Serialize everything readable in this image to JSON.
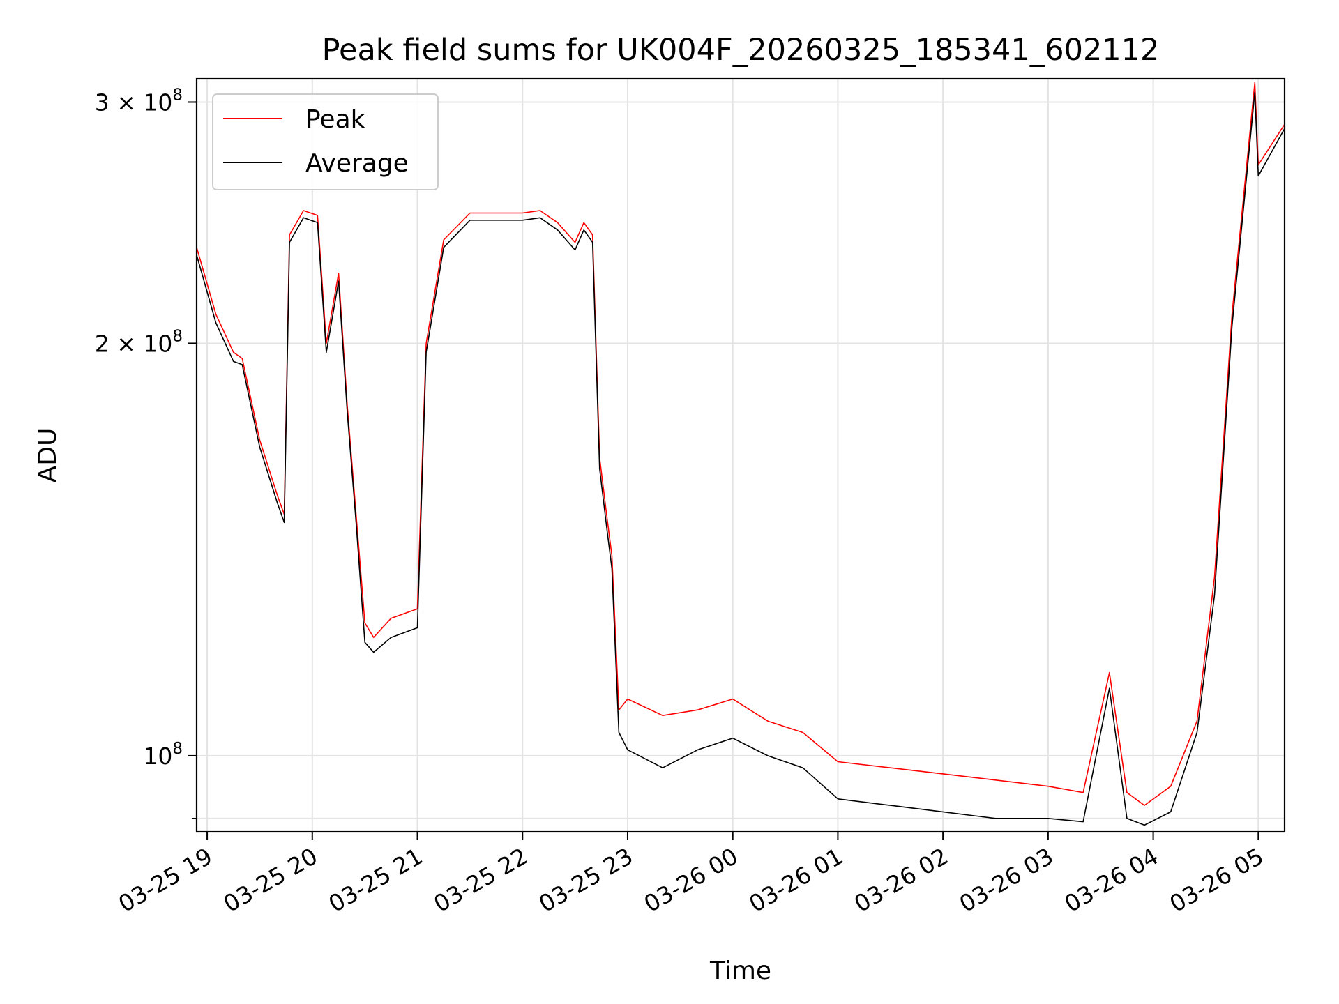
{
  "chart_data": {
    "type": "line",
    "title": "Peak field sums for UK004F_20260325_185341_602112",
    "xlabel": "Time",
    "ylabel": "ADU",
    "yscale": "log",
    "xlim": [
      "2026-03-25 18:54",
      "2026-03-26 05:15"
    ],
    "ylim": [
      88000000,
      312000000
    ],
    "x_ticks": [
      {
        "t": "2026-03-25 19:00",
        "label": "03-25 19"
      },
      {
        "t": "2026-03-25 20:00",
        "label": "03-25 20"
      },
      {
        "t": "2026-03-25 21:00",
        "label": "03-25 21"
      },
      {
        "t": "2026-03-25 22:00",
        "label": "03-25 22"
      },
      {
        "t": "2026-03-25 23:00",
        "label": "03-25 23"
      },
      {
        "t": "2026-03-26 00:00",
        "label": "03-26 00"
      },
      {
        "t": "2026-03-26 01:00",
        "label": "03-26 01"
      },
      {
        "t": "2026-03-26 02:00",
        "label": "03-26 02"
      },
      {
        "t": "2026-03-26 03:00",
        "label": "03-26 03"
      },
      {
        "t": "2026-03-26 04:00",
        "label": "03-26 04"
      },
      {
        "t": "2026-03-26 05:00",
        "label": "03-26 05"
      }
    ],
    "y_ticks_major": [
      {
        "v": 100000000,
        "base": "10",
        "exp": "8"
      },
      {
        "v": 200000000,
        "base": "2 × 10",
        "exp": "8"
      },
      {
        "v": 300000000,
        "base": "3 × 10",
        "exp": "8"
      }
    ],
    "y_ticks_minor": [
      90000000
    ],
    "grid": true,
    "legend_position": "top-left",
    "series": [
      {
        "name": "Peak",
        "color": "#ff0000",
        "x": [
          "2026-03-25 18:54",
          "2026-03-25 19:05",
          "2026-03-25 19:15",
          "2026-03-25 19:20",
          "2026-03-25 19:30",
          "2026-03-25 19:40",
          "2026-03-25 19:44",
          "2026-03-25 19:47",
          "2026-03-25 19:55",
          "2026-03-25 20:03",
          "2026-03-25 20:08",
          "2026-03-25 20:15",
          "2026-03-25 20:20",
          "2026-03-25 20:25",
          "2026-03-25 20:30",
          "2026-03-25 20:35",
          "2026-03-25 20:45",
          "2026-03-25 21:00",
          "2026-03-25 21:05",
          "2026-03-25 21:15",
          "2026-03-25 21:30",
          "2026-03-25 22:00",
          "2026-03-25 22:10",
          "2026-03-25 22:20",
          "2026-03-25 22:30",
          "2026-03-25 22:35",
          "2026-03-25 22:40",
          "2026-03-25 22:44",
          "2026-03-25 22:48",
          "2026-03-25 22:51",
          "2026-03-25 22:55",
          "2026-03-25 23:00",
          "2026-03-25 23:20",
          "2026-03-25 23:40",
          "2026-03-26 00:00",
          "2026-03-26 00:20",
          "2026-03-26 00:40",
          "2026-03-26 01:00",
          "2026-03-26 01:30",
          "2026-03-26 02:00",
          "2026-03-26 02:30",
          "2026-03-26 03:00",
          "2026-03-26 03:20",
          "2026-03-26 03:35",
          "2026-03-26 03:45",
          "2026-03-26 03:55",
          "2026-03-26 04:10",
          "2026-03-26 04:25",
          "2026-03-26 04:35",
          "2026-03-26 04:45",
          "2026-03-26 04:58",
          "2026-03-26 05:00",
          "2026-03-26 05:15"
        ],
        "y": [
          235000000,
          210000000,
          197000000,
          195000000,
          170000000,
          155000000,
          150000000,
          240000000,
          250000000,
          248000000,
          200000000,
          225000000,
          180000000,
          150000000,
          125000000,
          122000000,
          126000000,
          128000000,
          200000000,
          238000000,
          249000000,
          249000000,
          250000000,
          245000000,
          237000000,
          245000000,
          240000000,
          165000000,
          150000000,
          140000000,
          108000000,
          110000000,
          107000000,
          108000000,
          110000000,
          106000000,
          104000000,
          99000000,
          98000000,
          97000000,
          96000000,
          95000000,
          94000000,
          115000000,
          94000000,
          92000000,
          95000000,
          106000000,
          135000000,
          210000000,
          310000000,
          270000000,
          289000000
        ]
      },
      {
        "name": "Average",
        "color": "#000000",
        "x": [
          "2026-03-25 18:54",
          "2026-03-25 19:05",
          "2026-03-25 19:15",
          "2026-03-25 19:20",
          "2026-03-25 19:30",
          "2026-03-25 19:40",
          "2026-03-25 19:44",
          "2026-03-25 19:47",
          "2026-03-25 19:55",
          "2026-03-25 20:03",
          "2026-03-25 20:08",
          "2026-03-25 20:15",
          "2026-03-25 20:20",
          "2026-03-25 20:25",
          "2026-03-25 20:30",
          "2026-03-25 20:35",
          "2026-03-25 20:45",
          "2026-03-25 21:00",
          "2026-03-25 21:05",
          "2026-03-25 21:15",
          "2026-03-25 21:30",
          "2026-03-25 22:00",
          "2026-03-25 22:10",
          "2026-03-25 22:20",
          "2026-03-25 22:30",
          "2026-03-25 22:35",
          "2026-03-25 22:40",
          "2026-03-25 22:44",
          "2026-03-25 22:48",
          "2026-03-25 22:51",
          "2026-03-25 22:55",
          "2026-03-25 23:00",
          "2026-03-25 23:20",
          "2026-03-25 23:40",
          "2026-03-26 00:00",
          "2026-03-26 00:20",
          "2026-03-26 00:40",
          "2026-03-26 01:00",
          "2026-03-26 01:30",
          "2026-03-26 02:00",
          "2026-03-26 02:30",
          "2026-03-26 03:00",
          "2026-03-26 03:20",
          "2026-03-26 03:35",
          "2026-03-26 03:45",
          "2026-03-26 03:55",
          "2026-03-26 04:10",
          "2026-03-26 04:25",
          "2026-03-26 04:35",
          "2026-03-26 04:45",
          "2026-03-26 04:58",
          "2026-03-26 05:00",
          "2026-03-26 05:15"
        ],
        "y": [
          232000000,
          207000000,
          194000000,
          193000000,
          168000000,
          153000000,
          148000000,
          237000000,
          247000000,
          245000000,
          197000000,
          222000000,
          178000000,
          148000000,
          121000000,
          119000000,
          122000000,
          124000000,
          197000000,
          235000000,
          246000000,
          246000000,
          247000000,
          242000000,
          234000000,
          242000000,
          237000000,
          162000000,
          147000000,
          137000000,
          104000000,
          101000000,
          98000000,
          101000000,
          103000000,
          100000000,
          98000000,
          93000000,
          92000000,
          91000000,
          90000000,
          90000000,
          89500000,
          112000000,
          90000000,
          89000000,
          91000000,
          104000000,
          131000000,
          206000000,
          305000000,
          265000000,
          287000000
        ]
      }
    ]
  }
}
